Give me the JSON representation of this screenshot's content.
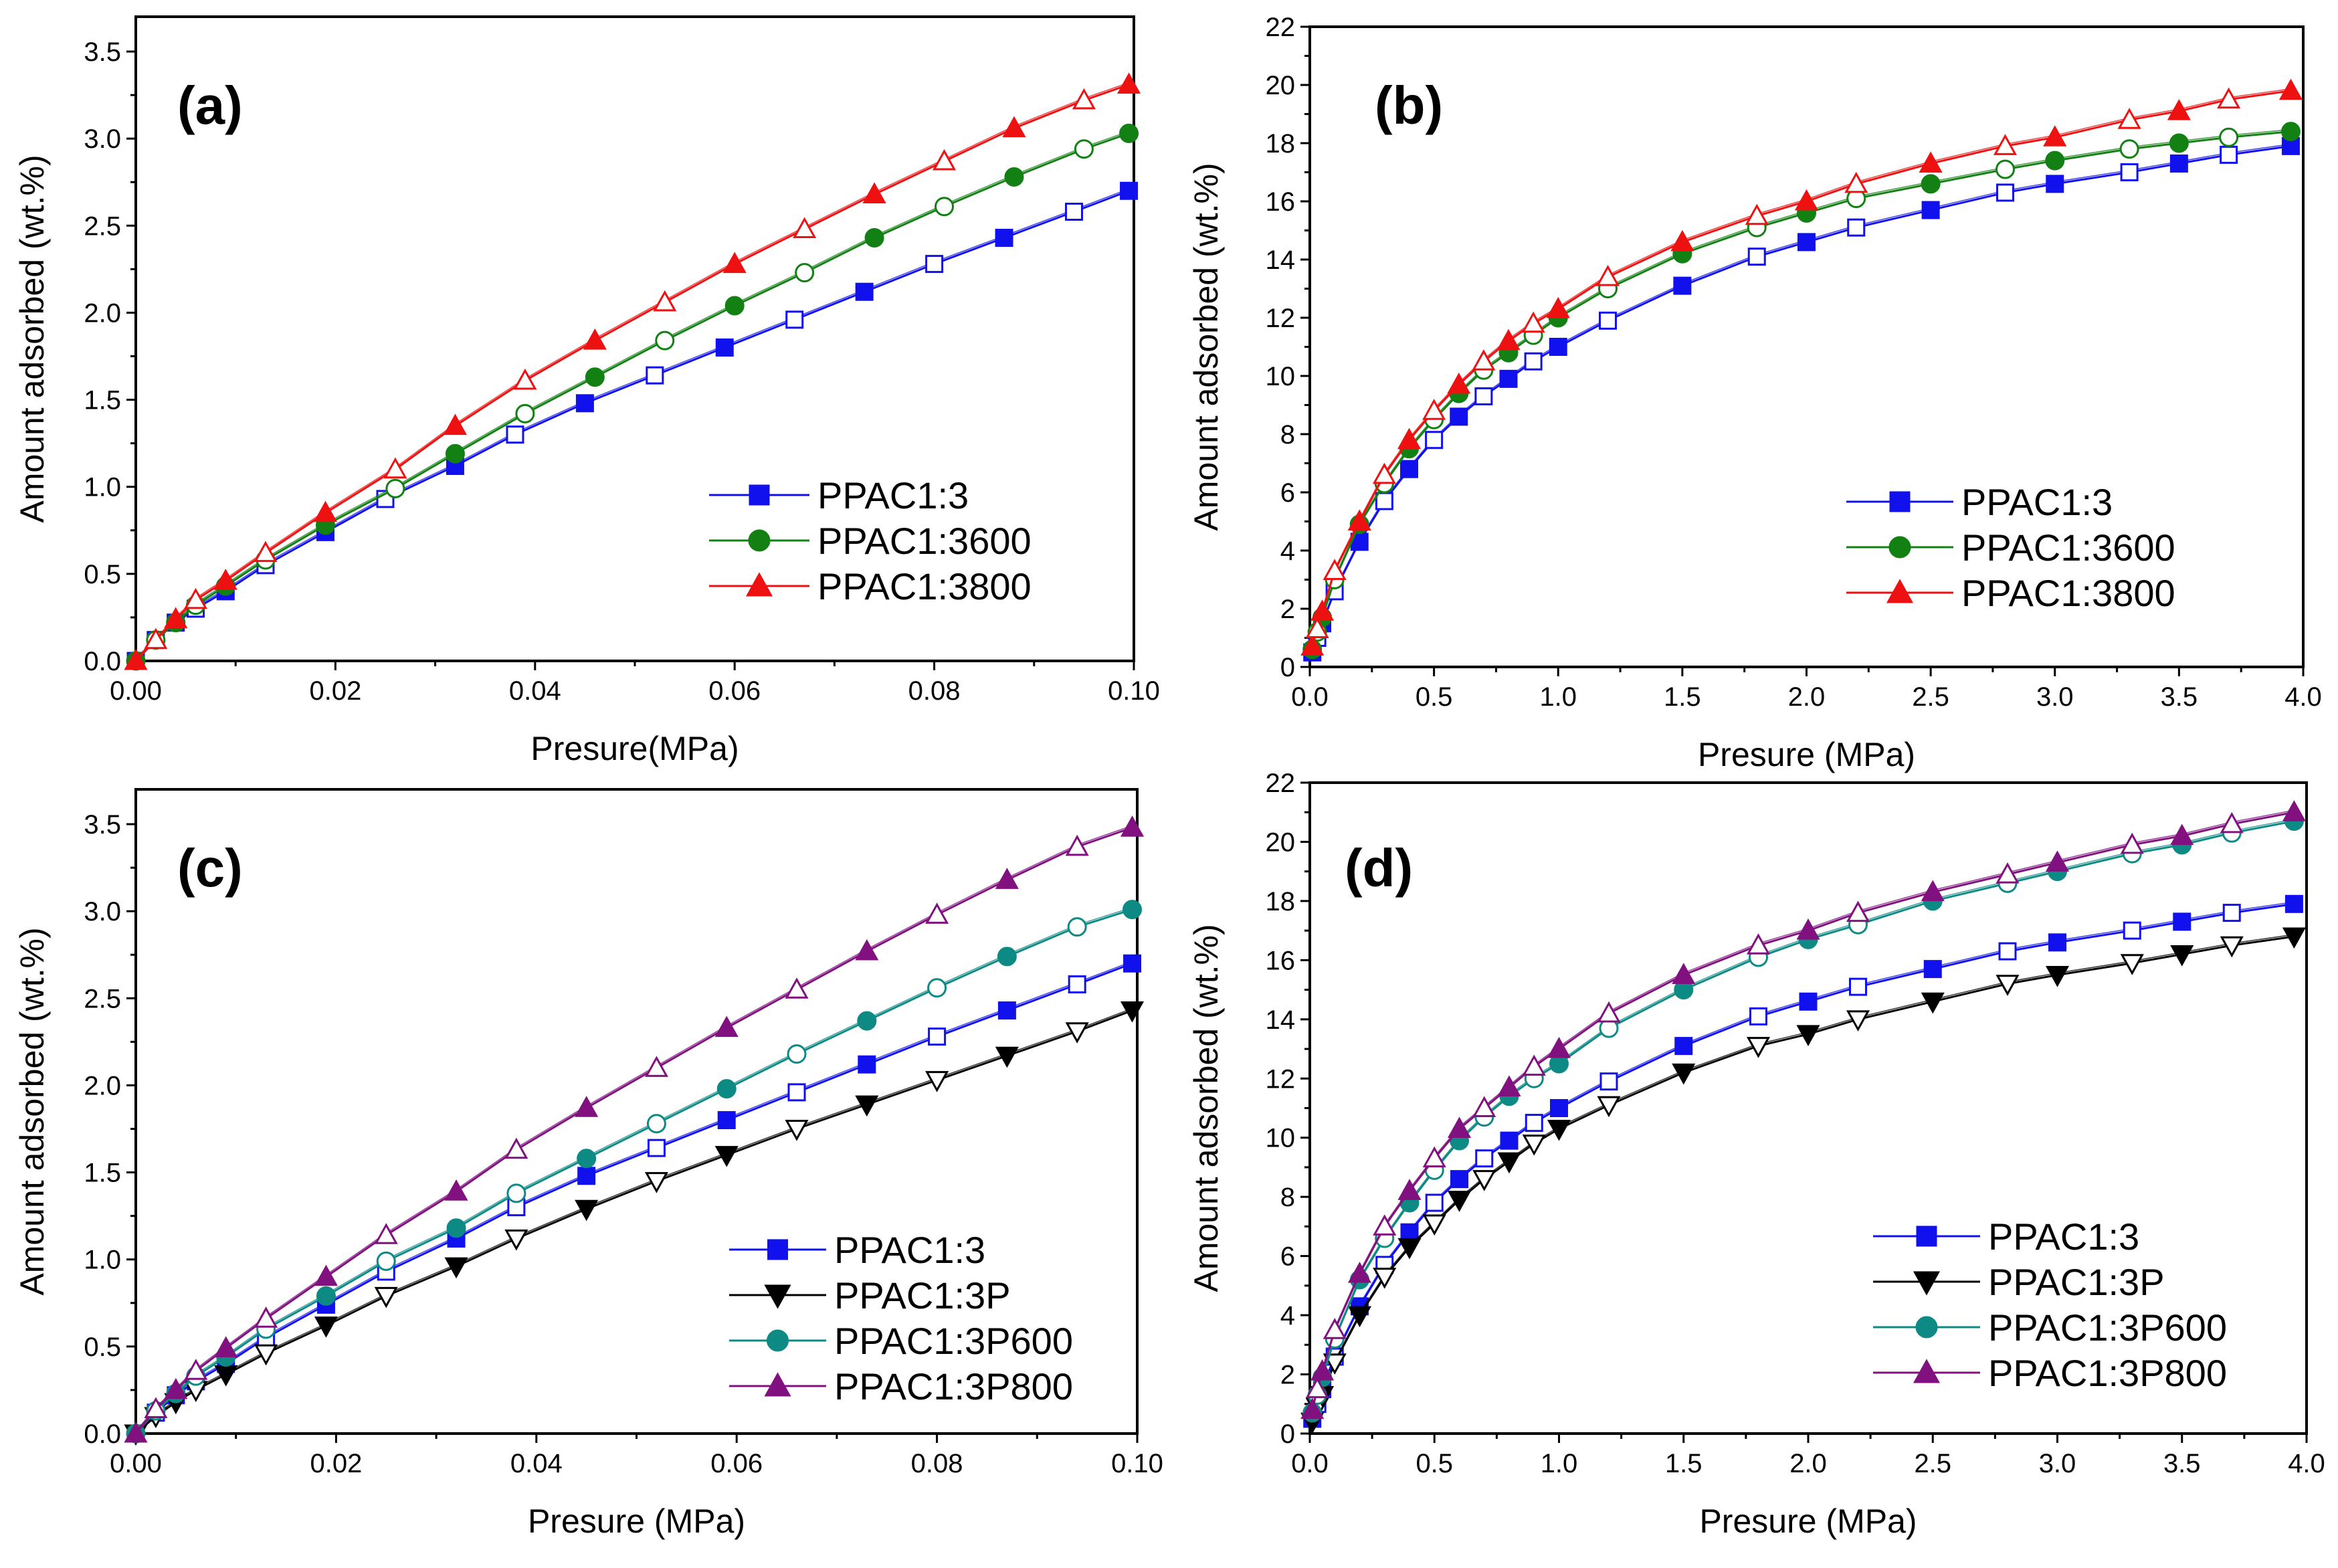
{
  "figure": {
    "title": ""
  },
  "chart_data": [
    {
      "panel": "(a)",
      "type": "line",
      "xlabel": "Presure(MPa)",
      "ylabel": "Amount adsorbed (wt.%)",
      "xlim": [
        0,
        0.1
      ],
      "ylim": [
        0,
        3.7
      ],
      "xticks": [
        "0.00",
        "0.02",
        "0.04",
        "0.06",
        "0.08",
        "0.10"
      ],
      "yticks": [
        "0.0",
        "0.5",
        "1.0",
        "1.5",
        "2.0",
        "2.5",
        "3.0",
        "3.5"
      ],
      "legend_position": "bottom-right",
      "series": [
        {
          "name": "PPAC1:3",
          "color": "#1111ee",
          "marker": "square",
          "x": [
            0,
            0.002,
            0.004,
            0.006,
            0.009,
            0.013,
            0.019,
            0.025,
            0.032,
            0.038,
            0.045,
            0.052,
            0.059,
            0.066,
            0.073,
            0.08,
            0.087,
            0.094,
            0.0995
          ],
          "y": [
            0,
            0.12,
            0.22,
            0.3,
            0.4,
            0.55,
            0.74,
            0.93,
            1.12,
            1.3,
            1.48,
            1.64,
            1.8,
            1.96,
            2.12,
            2.28,
            2.43,
            2.58,
            2.7
          ]
        },
        {
          "name": "PPAC1:3600",
          "color": "#138013",
          "marker": "circle",
          "x": [
            0,
            0.002,
            0.004,
            0.006,
            0.009,
            0.013,
            0.019,
            0.026,
            0.032,
            0.039,
            0.046,
            0.053,
            0.06,
            0.067,
            0.074,
            0.081,
            0.088,
            0.095,
            0.0995
          ],
          "y": [
            0,
            0.12,
            0.22,
            0.32,
            0.43,
            0.58,
            0.78,
            0.99,
            1.19,
            1.42,
            1.63,
            1.84,
            2.04,
            2.23,
            2.43,
            2.61,
            2.78,
            2.94,
            3.03
          ]
        },
        {
          "name": "PPAC1:3800",
          "color": "#ee1111",
          "marker": "triangle",
          "x": [
            0,
            0.002,
            0.004,
            0.006,
            0.009,
            0.013,
            0.019,
            0.026,
            0.032,
            0.039,
            0.046,
            0.053,
            0.06,
            0.067,
            0.074,
            0.081,
            0.088,
            0.095,
            0.0995
          ],
          "y": [
            0,
            0.12,
            0.24,
            0.35,
            0.46,
            0.62,
            0.85,
            1.1,
            1.35,
            1.61,
            1.84,
            2.06,
            2.28,
            2.48,
            2.68,
            2.87,
            3.06,
            3.22,
            3.31
          ]
        }
      ],
      "annotations": []
    },
    {
      "panel": "(b)",
      "type": "line",
      "xlabel": "Presure (MPa)",
      "ylabel": "Amount adsorbed (wt.%)",
      "xlim": [
        0,
        4.0
      ],
      "ylim": [
        0,
        22
      ],
      "xticks": [
        "0.0",
        "0.5",
        "1.0",
        "1.5",
        "2.0",
        "2.5",
        "3.0",
        "3.5",
        "4.0"
      ],
      "yticks": [
        "0",
        "2",
        "4",
        "6",
        "8",
        "10",
        "12",
        "14",
        "16",
        "18",
        "20",
        "22"
      ],
      "legend_position": "bottom-right",
      "series": [
        {
          "name": "PPAC1:3",
          "color": "#1111ee",
          "marker": "square",
          "x": [
            0.01,
            0.03,
            0.05,
            0.1,
            0.2,
            0.3,
            0.4,
            0.5,
            0.6,
            0.7,
            0.8,
            0.9,
            1.0,
            1.2,
            1.5,
            1.8,
            2.0,
            2.2,
            2.5,
            2.8,
            3.0,
            3.3,
            3.5,
            3.7,
            3.95
          ],
          "y": [
            0.5,
            1.0,
            1.5,
            2.6,
            4.3,
            5.7,
            6.8,
            7.8,
            8.6,
            9.3,
            9.9,
            10.5,
            11.0,
            11.9,
            13.1,
            14.1,
            14.6,
            15.1,
            15.7,
            16.3,
            16.6,
            17.0,
            17.3,
            17.6,
            17.9
          ]
        },
        {
          "name": "PPAC1:3600",
          "color": "#138013",
          "marker": "circle",
          "x": [
            0.01,
            0.03,
            0.05,
            0.1,
            0.2,
            0.3,
            0.4,
            0.5,
            0.6,
            0.7,
            0.8,
            0.9,
            1.0,
            1.2,
            1.5,
            1.8,
            2.0,
            2.2,
            2.5,
            2.8,
            3.0,
            3.3,
            3.5,
            3.7,
            3.95
          ],
          "y": [
            0.6,
            1.2,
            1.7,
            3.0,
            4.9,
            6.3,
            7.5,
            8.5,
            9.4,
            10.2,
            10.8,
            11.4,
            12.0,
            13.0,
            14.2,
            15.1,
            15.6,
            16.1,
            16.6,
            17.1,
            17.4,
            17.8,
            18.0,
            18.2,
            18.4
          ]
        },
        {
          "name": "PPAC1:3800",
          "color": "#ee1111",
          "marker": "triangle",
          "x": [
            0.01,
            0.03,
            0.05,
            0.1,
            0.2,
            0.3,
            0.4,
            0.5,
            0.6,
            0.7,
            0.8,
            0.9,
            1.0,
            1.2,
            1.5,
            1.8,
            2.0,
            2.2,
            2.5,
            2.8,
            3.0,
            3.3,
            3.5,
            3.7,
            3.95
          ],
          "y": [
            0.7,
            1.3,
            1.9,
            3.3,
            5.0,
            6.6,
            7.8,
            8.8,
            9.7,
            10.5,
            11.2,
            11.8,
            12.3,
            13.4,
            14.6,
            15.5,
            16.0,
            16.6,
            17.3,
            17.9,
            18.2,
            18.8,
            19.1,
            19.5,
            19.8
          ]
        }
      ],
      "annotations": []
    },
    {
      "panel": "(c)",
      "type": "line",
      "xlabel": "Presure (MPa)",
      "ylabel": "Amount adsorbed (wt.%)",
      "xlim": [
        0,
        0.1
      ],
      "ylim": [
        0,
        3.7
      ],
      "xticks": [
        "0.00",
        "0.02",
        "0.04",
        "0.06",
        "0.08",
        "0.10"
      ],
      "yticks": [
        "0.0",
        "0.5",
        "1.0",
        "1.5",
        "2.0",
        "2.5",
        "3.0",
        "3.5"
      ],
      "legend_position": "bottom-right",
      "series": [
        {
          "name": "PPAC1:3",
          "color": "#1111ee",
          "marker": "square",
          "x": [
            0,
            0.002,
            0.004,
            0.006,
            0.009,
            0.013,
            0.019,
            0.025,
            0.032,
            0.038,
            0.045,
            0.052,
            0.059,
            0.066,
            0.073,
            0.08,
            0.087,
            0.094,
            0.0995
          ],
          "y": [
            0,
            0.12,
            0.22,
            0.3,
            0.4,
            0.55,
            0.74,
            0.93,
            1.12,
            1.3,
            1.48,
            1.64,
            1.8,
            1.96,
            2.12,
            2.28,
            2.43,
            2.58,
            2.7
          ]
        },
        {
          "name": "PPAC1:3P",
          "color": "#000000",
          "marker": "triangle-down",
          "x": [
            0,
            0.002,
            0.004,
            0.006,
            0.009,
            0.013,
            0.019,
            0.025,
            0.032,
            0.038,
            0.045,
            0.052,
            0.059,
            0.066,
            0.073,
            0.08,
            0.087,
            0.094,
            0.0995
          ],
          "y": [
            0,
            0.1,
            0.18,
            0.25,
            0.34,
            0.46,
            0.62,
            0.79,
            0.96,
            1.12,
            1.29,
            1.45,
            1.6,
            1.75,
            1.89,
            2.03,
            2.17,
            2.31,
            2.43
          ]
        },
        {
          "name": "PPAC1:3P600",
          "color": "#0e8a84",
          "marker": "circle",
          "x": [
            0,
            0.002,
            0.004,
            0.006,
            0.009,
            0.013,
            0.019,
            0.025,
            0.032,
            0.038,
            0.045,
            0.052,
            0.059,
            0.066,
            0.073,
            0.08,
            0.087,
            0.094,
            0.0995
          ],
          "y": [
            0,
            0.13,
            0.23,
            0.33,
            0.44,
            0.6,
            0.79,
            0.99,
            1.18,
            1.38,
            1.58,
            1.78,
            1.98,
            2.18,
            2.37,
            2.56,
            2.74,
            2.91,
            3.01
          ]
        },
        {
          "name": "PPAC1:3P800",
          "color": "#80117f",
          "marker": "triangle",
          "x": [
            0,
            0.002,
            0.004,
            0.006,
            0.009,
            0.013,
            0.019,
            0.025,
            0.032,
            0.038,
            0.045,
            0.052,
            0.059,
            0.066,
            0.073,
            0.08,
            0.087,
            0.094,
            0.0995
          ],
          "y": [
            0,
            0.14,
            0.25,
            0.36,
            0.49,
            0.66,
            0.9,
            1.14,
            1.39,
            1.63,
            1.87,
            2.1,
            2.33,
            2.55,
            2.77,
            2.98,
            3.18,
            3.37,
            3.48
          ]
        }
      ],
      "annotations": []
    },
    {
      "panel": "(d)",
      "type": "line",
      "xlabel": "Presure (MPa)",
      "ylabel": "Amount adsorbed (wt.%)",
      "xlim": [
        0,
        4.0
      ],
      "ylim": [
        0,
        22
      ],
      "xticks": [
        "0.0",
        "0.5",
        "1.0",
        "1.5",
        "2.0",
        "2.5",
        "3.0",
        "3.5",
        "4.0"
      ],
      "yticks": [
        "0",
        "2",
        "4",
        "6",
        "8",
        "10",
        "12",
        "14",
        "16",
        "18",
        "20",
        "22"
      ],
      "legend_position": "bottom-right",
      "series": [
        {
          "name": "PPAC1:3",
          "color": "#1111ee",
          "marker": "square",
          "x": [
            0.01,
            0.03,
            0.05,
            0.1,
            0.2,
            0.3,
            0.4,
            0.5,
            0.6,
            0.7,
            0.8,
            0.9,
            1.0,
            1.2,
            1.5,
            1.8,
            2.0,
            2.2,
            2.5,
            2.8,
            3.0,
            3.3,
            3.5,
            3.7,
            3.95
          ],
          "y": [
            0.5,
            1.0,
            1.5,
            2.6,
            4.3,
            5.7,
            6.8,
            7.8,
            8.6,
            9.3,
            9.9,
            10.5,
            11.0,
            11.9,
            13.1,
            14.1,
            14.6,
            15.1,
            15.7,
            16.3,
            16.6,
            17.0,
            17.3,
            17.6,
            17.9
          ]
        },
        {
          "name": "PPAC1:3P",
          "color": "#000000",
          "marker": "triangle-down",
          "x": [
            0.01,
            0.03,
            0.05,
            0.1,
            0.2,
            0.3,
            0.4,
            0.5,
            0.6,
            0.7,
            0.8,
            0.9,
            1.0,
            1.2,
            1.5,
            1.8,
            2.0,
            2.2,
            2.5,
            2.8,
            3.0,
            3.3,
            3.5,
            3.7,
            3.95
          ],
          "y": [
            0.4,
            0.9,
            1.3,
            2.4,
            4.0,
            5.3,
            6.3,
            7.1,
            7.9,
            8.6,
            9.2,
            9.8,
            10.3,
            11.1,
            12.2,
            13.1,
            13.5,
            14.0,
            14.6,
            15.2,
            15.5,
            15.9,
            16.2,
            16.5,
            16.8
          ]
        },
        {
          "name": "PPAC1:3P600",
          "color": "#0e8a84",
          "marker": "circle",
          "x": [
            0.01,
            0.03,
            0.05,
            0.1,
            0.2,
            0.3,
            0.4,
            0.5,
            0.6,
            0.7,
            0.8,
            0.9,
            1.0,
            1.2,
            1.5,
            1.8,
            2.0,
            2.2,
            2.5,
            2.8,
            3.0,
            3.3,
            3.5,
            3.7,
            3.95
          ],
          "y": [
            0.7,
            1.3,
            1.9,
            3.2,
            5.2,
            6.6,
            7.8,
            8.9,
            9.9,
            10.7,
            11.4,
            12.0,
            12.5,
            13.7,
            15.0,
            16.1,
            16.7,
            17.2,
            18.0,
            18.6,
            19.0,
            19.6,
            19.9,
            20.3,
            20.7
          ]
        },
        {
          "name": "PPAC1:3P800",
          "color": "#80117f",
          "marker": "triangle",
          "x": [
            0.01,
            0.03,
            0.05,
            0.1,
            0.2,
            0.3,
            0.4,
            0.5,
            0.6,
            0.7,
            0.8,
            0.9,
            1.0,
            1.2,
            1.5,
            1.8,
            2.0,
            2.2,
            2.5,
            2.8,
            3.0,
            3.3,
            3.5,
            3.7,
            3.95
          ],
          "y": [
            0.8,
            1.5,
            2.1,
            3.5,
            5.4,
            7.0,
            8.2,
            9.3,
            10.3,
            11.0,
            11.7,
            12.4,
            13.0,
            14.2,
            15.5,
            16.5,
            17.0,
            17.6,
            18.3,
            18.9,
            19.3,
            19.9,
            20.2,
            20.6,
            21.0
          ]
        }
      ],
      "annotations": []
    }
  ]
}
